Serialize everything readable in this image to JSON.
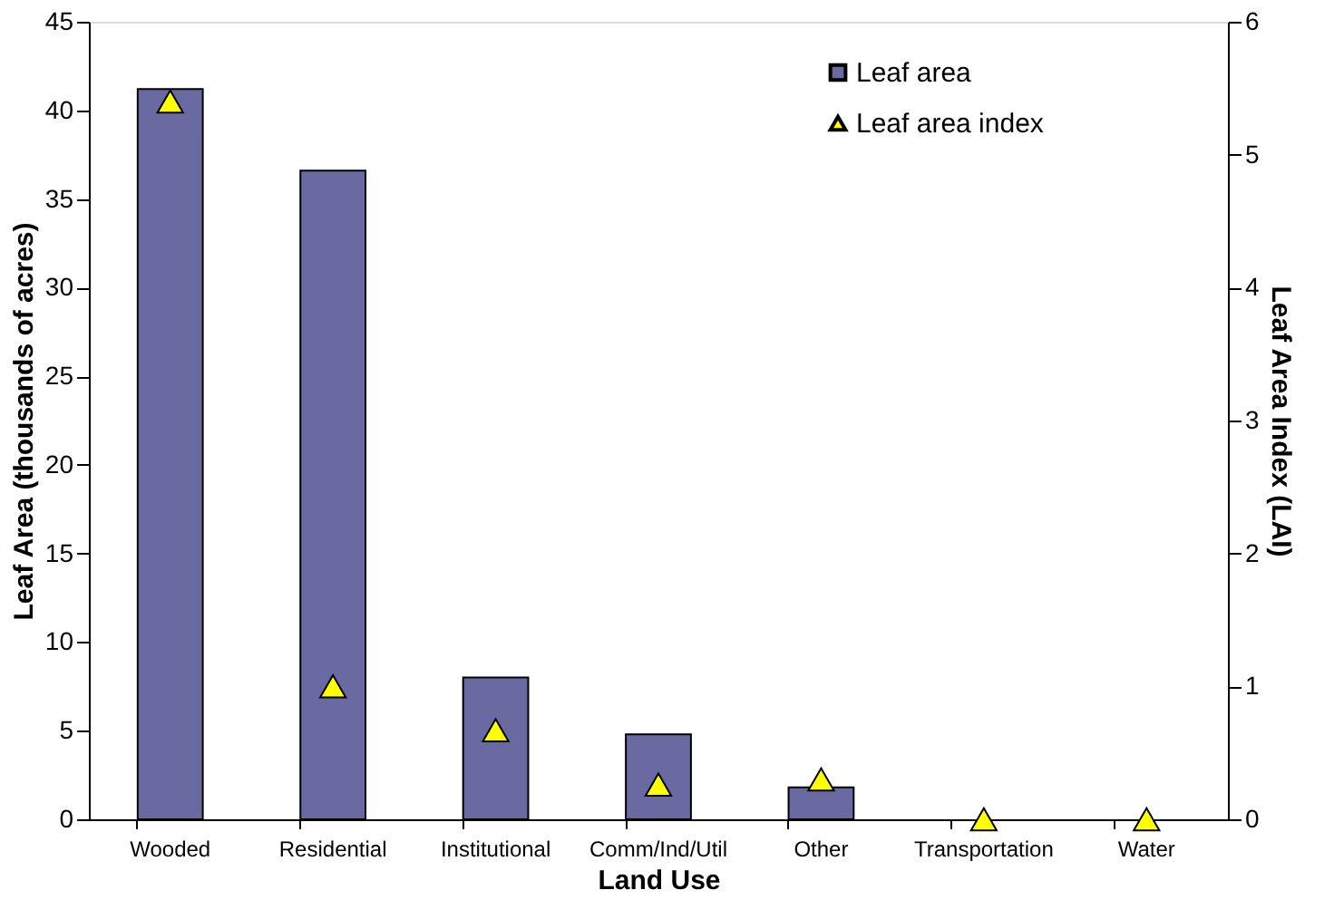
{
  "chart_data": {
    "type": "bar",
    "xlabel": "Land Use",
    "ylabel": "Leaf Area (thousands of acres)",
    "y2label": "Leaf Area Index (LAI)",
    "categories": [
      "Wooded",
      "Residential",
      "Institutional",
      "Comm/Ind/Util",
      "Other",
      "Transportation",
      "Water"
    ],
    "series": [
      {
        "name": "Leaf area",
        "color": "#6a6aa2",
        "values": [
          41.2,
          36.6,
          8.0,
          4.8,
          1.8,
          0,
          0
        ]
      },
      {
        "name": "Leaf area index",
        "type": "scatter",
        "axis": "y2",
        "marker": "triangle",
        "color": "#ffff00",
        "values": [
          5.4,
          1.0,
          0.67,
          0.26,
          0.3,
          0,
          0
        ]
      }
    ],
    "ylim": [
      0,
      45
    ],
    "yticks": [
      0,
      5,
      10,
      15,
      20,
      25,
      30,
      35,
      40,
      45
    ],
    "y2lim": [
      0,
      6
    ],
    "y2ticks": [
      0,
      1,
      2,
      3,
      4,
      5,
      6
    ],
    "grid": false,
    "legend": "top right"
  }
}
